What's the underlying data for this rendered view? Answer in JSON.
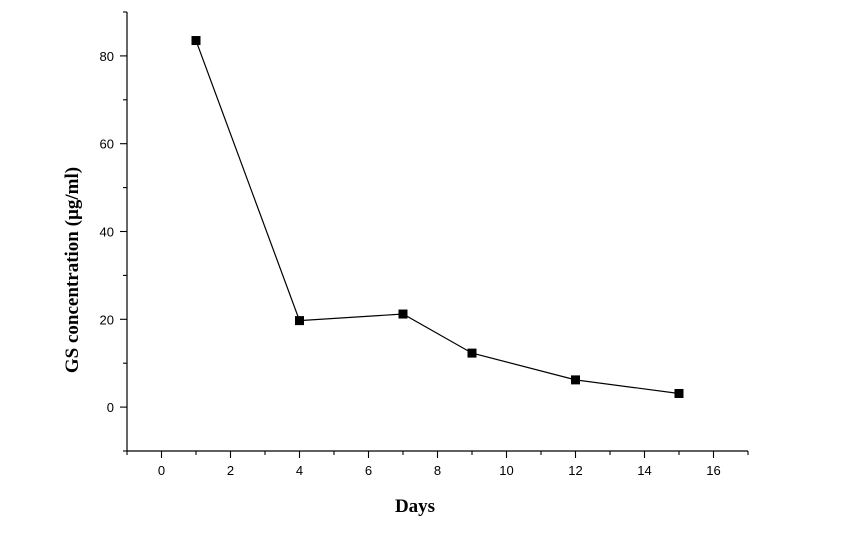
{
  "chart_data": {
    "type": "line",
    "title": "",
    "xlabel": "Days",
    "ylabel": "GS concentration (µg/ml)",
    "xlim": [
      -1,
      17
    ],
    "ylim": [
      -10,
      90
    ],
    "x_ticks": [
      0,
      2,
      4,
      6,
      8,
      10,
      12,
      14,
      16
    ],
    "y_ticks": [
      0,
      20,
      40,
      60,
      80
    ],
    "grid": false,
    "legend": "none",
    "series": [
      {
        "x": [
          1,
          4,
          7,
          9,
          12,
          15
        ],
        "y": [
          83.5,
          19.7,
          21.2,
          12.3,
          6.2,
          3.1
        ],
        "marker": "square",
        "color": "#000000"
      }
    ]
  }
}
